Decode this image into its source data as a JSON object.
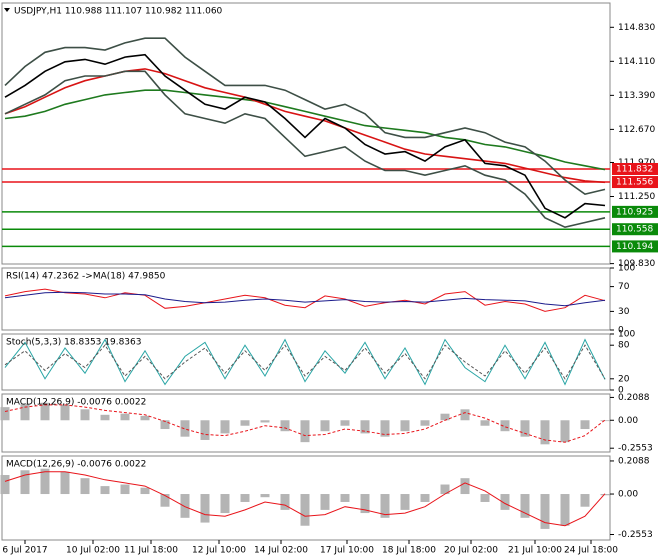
{
  "chart_data": [
    {
      "type": "line",
      "title": "USDJPY,H1  110.988 111.107 110.982 111.060",
      "x": [
        0,
        1,
        2,
        3,
        4,
        5,
        6,
        7,
        8,
        9,
        10,
        11,
        12,
        13,
        14,
        15,
        16,
        17,
        18,
        19,
        20,
        21,
        22,
        23,
        24,
        25,
        26,
        27,
        28,
        29,
        30
      ],
      "xlim": [
        0,
        30
      ],
      "ylim": [
        109.822,
        115.344
      ],
      "yticks": [
        {
          "value": 114.83,
          "label": "114.830"
        },
        {
          "value": 114.11,
          "label": "114.110"
        },
        {
          "value": 113.39,
          "label": "113.390"
        },
        {
          "value": 112.67,
          "label": "112.670"
        },
        {
          "value": 111.97,
          "label": "111.970"
        },
        {
          "value": 111.25,
          "label": "111.250"
        },
        {
          "value": 109.83,
          "label": "109.830"
        }
      ],
      "levels": [
        {
          "value": 111.832,
          "color": "#e8141a"
        },
        {
          "value": 111.556,
          "color": "#e8141a"
        },
        {
          "value": 110.925,
          "color": "#0a8a0a"
        },
        {
          "value": 110.558,
          "color": "#0a8a0a"
        },
        {
          "value": 110.194,
          "color": "#0a8a0a"
        }
      ],
      "series": [
        {
          "color": "#1e7a1e",
          "values": [
            112.9,
            112.95,
            113.05,
            113.2,
            113.3,
            113.4,
            113.45,
            113.5,
            113.5,
            113.45,
            113.4,
            113.35,
            113.3,
            113.25,
            113.15,
            113.05,
            112.95,
            112.85,
            112.75,
            112.7,
            112.65,
            112.6,
            112.5,
            112.45,
            112.35,
            112.3,
            112.2,
            112.1,
            111.98,
            111.9,
            111.82
          ]
        },
        {
          "color": "#d81414",
          "values": [
            113.0,
            113.15,
            113.35,
            113.55,
            113.7,
            113.8,
            113.9,
            113.95,
            113.85,
            113.7,
            113.55,
            113.45,
            113.35,
            113.2,
            113.05,
            112.95,
            112.85,
            112.7,
            112.55,
            112.4,
            112.25,
            112.15,
            112.1,
            112.05,
            112.0,
            111.95,
            111.85,
            111.75,
            111.65,
            111.58,
            111.55
          ]
        },
        {
          "color": "#3d4f46",
          "values": [
            113.6,
            114.0,
            114.3,
            114.4,
            114.4,
            114.35,
            114.5,
            114.6,
            114.6,
            114.2,
            113.9,
            113.6,
            113.6,
            113.6,
            113.5,
            113.3,
            113.1,
            113.2,
            113.0,
            112.6,
            112.5,
            112.5,
            112.6,
            112.7,
            112.6,
            112.4,
            112.3,
            112.0,
            111.6,
            111.3,
            111.4
          ]
        },
        {
          "color": "#3d4f46",
          "values": [
            113.0,
            113.2,
            113.4,
            113.7,
            113.8,
            113.8,
            113.9,
            113.9,
            113.4,
            113.0,
            112.9,
            112.8,
            113.0,
            112.9,
            112.5,
            112.1,
            112.2,
            112.3,
            112.0,
            111.8,
            111.8,
            111.7,
            111.8,
            111.9,
            111.7,
            111.6,
            111.3,
            110.8,
            110.6,
            110.7,
            110.8
          ]
        },
        {
          "color": "#000000",
          "values": [
            113.35,
            113.6,
            113.9,
            114.1,
            114.15,
            114.05,
            114.2,
            114.25,
            113.8,
            113.5,
            113.2,
            113.1,
            113.35,
            113.25,
            112.9,
            112.5,
            112.9,
            112.7,
            112.35,
            112.15,
            112.2,
            112.0,
            112.3,
            112.45,
            111.95,
            111.9,
            111.7,
            111.0,
            110.8,
            111.1,
            111.06
          ]
        }
      ]
    },
    {
      "type": "line",
      "title": "RSI(14) 47.2362 ->MA(18) 47.9850",
      "ylim": [
        0,
        100
      ],
      "yticks": [
        100,
        70,
        30,
        0
      ],
      "series": [
        {
          "color": "#e8141a",
          "values": [
            55,
            62,
            66,
            60,
            58,
            52,
            60,
            56,
            35,
            38,
            44,
            50,
            56,
            52,
            40,
            36,
            55,
            50,
            38,
            44,
            48,
            42,
            58,
            62,
            40,
            46,
            42,
            30,
            36,
            56,
            47.2362
          ]
        },
        {
          "color": "#1c1c8c",
          "values": [
            52,
            56,
            60,
            61,
            60,
            58,
            58,
            57,
            50,
            46,
            44,
            45,
            48,
            50,
            48,
            45,
            47,
            49,
            46,
            45,
            46,
            45,
            48,
            51,
            49,
            48,
            47,
            42,
            39,
            44,
            47.985
          ]
        }
      ]
    },
    {
      "type": "line",
      "title": "Stoch(5,3,3) 18.8353 19.8363",
      "ylim": [
        0,
        100
      ],
      "yticks": [
        100,
        80,
        20,
        0
      ],
      "series": [
        {
          "color": "#2aa6a6",
          "values": [
            40,
            85,
            20,
            75,
            30,
            90,
            15,
            70,
            10,
            60,
            85,
            20,
            80,
            25,
            90,
            15,
            70,
            30,
            85,
            20,
            75,
            10,
            90,
            40,
            15,
            80,
            20,
            85,
            10,
            90,
            18.8353
          ]
        },
        {
          "color": "#555555",
          "dash": true,
          "values": [
            45,
            70,
            35,
            65,
            40,
            80,
            25,
            60,
            20,
            50,
            75,
            30,
            70,
            35,
            80,
            25,
            60,
            35,
            75,
            30,
            65,
            20,
            80,
            50,
            25,
            70,
            30,
            75,
            20,
            80,
            19.8363
          ]
        }
      ]
    },
    {
      "type": "line",
      "title": "MACD(12,26,9) -0.0076 0.0022",
      "ylim": [
        -0.29,
        0.24
      ],
      "yticks": [
        0.2088,
        {
          "value": 0,
          "label": "0.00"
        },
        -0.2553
      ],
      "series": [
        {
          "color": "#b4b4b4",
          "kind": "bar",
          "values": [
            0.12,
            0.15,
            0.16,
            0.14,
            0.1,
            0.05,
            0.06,
            0.04,
            -0.08,
            -0.15,
            -0.18,
            -0.12,
            -0.05,
            -0.02,
            -0.1,
            -0.2,
            -0.1,
            -0.05,
            -0.12,
            -0.15,
            -0.1,
            -0.05,
            0.06,
            0.1,
            -0.05,
            -0.1,
            -0.15,
            -0.22,
            -0.2,
            -0.08,
            -0.0076
          ]
        },
        {
          "color": "#e8141a",
          "dash": true,
          "values": [
            0.08,
            0.12,
            0.14,
            0.14,
            0.12,
            0.09,
            0.07,
            0.05,
            -0.01,
            -0.08,
            -0.13,
            -0.14,
            -0.1,
            -0.05,
            -0.07,
            -0.14,
            -0.13,
            -0.08,
            -0.1,
            -0.13,
            -0.12,
            -0.08,
            0.0,
            0.07,
            0.02,
            -0.06,
            -0.12,
            -0.18,
            -0.2,
            -0.14,
            0.0022
          ]
        }
      ]
    },
    {
      "type": "line",
      "title": "MACD(12,26,9) -0.0076 0.0022",
      "ylim": [
        -0.29,
        0.24
      ],
      "yticks": [
        0.2088,
        {
          "value": 0,
          "label": "0.00"
        },
        -0.2553
      ],
      "xticks": [
        {
          "value": 1.0,
          "label": "6 Jul 2017"
        },
        {
          "value": 4.4,
          "label": "10 Jul 02:00"
        },
        {
          "value": 7.3,
          "label": "11 Jul 18:00"
        },
        {
          "value": 10.7,
          "label": "12 Jul 10:00"
        },
        {
          "value": 13.8,
          "label": "14 Jul 02:00"
        },
        {
          "value": 17.1,
          "label": "17 Jul 10:00"
        },
        {
          "value": 20.2,
          "label": "18 Jul 18:00"
        },
        {
          "value": 23.3,
          "label": "20 Jul 02:00"
        },
        {
          "value": 26.5,
          "label": "21 Jul 10:00"
        },
        {
          "value": 29.3,
          "label": "24 Jul 18:00"
        }
      ],
      "series": [
        {
          "color": "#b4b4b4",
          "kind": "bar",
          "values": [
            0.12,
            0.15,
            0.16,
            0.14,
            0.1,
            0.05,
            0.06,
            0.04,
            -0.08,
            -0.15,
            -0.18,
            -0.12,
            -0.05,
            -0.02,
            -0.1,
            -0.2,
            -0.1,
            -0.05,
            -0.12,
            -0.15,
            -0.1,
            -0.05,
            0.06,
            0.1,
            -0.05,
            -0.1,
            -0.15,
            -0.22,
            -0.2,
            -0.08,
            -0.0076
          ]
        },
        {
          "color": "#e8141a",
          "values": [
            0.08,
            0.12,
            0.14,
            0.14,
            0.12,
            0.09,
            0.07,
            0.05,
            -0.01,
            -0.08,
            -0.13,
            -0.14,
            -0.1,
            -0.05,
            -0.07,
            -0.14,
            -0.13,
            -0.08,
            -0.1,
            -0.13,
            -0.12,
            -0.08,
            0.0,
            0.07,
            0.02,
            -0.06,
            -0.12,
            -0.18,
            -0.2,
            -0.14,
            0.0022
          ]
        }
      ]
    }
  ]
}
